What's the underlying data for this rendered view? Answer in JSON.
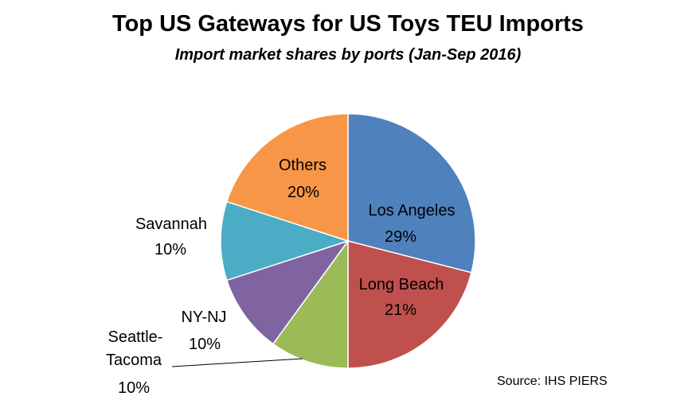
{
  "chart_data": {
    "type": "pie",
    "title": "Top US Gateways for US Toys TEU Imports",
    "subtitle": "Import market shares by ports (Jan-Sep 2016)",
    "source": "Source: IHS PIERS",
    "slices": [
      {
        "name": "Los Angeles",
        "value": 29,
        "label": "29%",
        "color": "#4f81bd"
      },
      {
        "name": "Long Beach",
        "value": 21,
        "label": "21%",
        "color": "#c0504d"
      },
      {
        "name": "Seattle-Tacoma",
        "value": 10,
        "label": "10%",
        "color": "#9bbb59"
      },
      {
        "name": "NY-NJ",
        "value": 10,
        "label": "10%",
        "color": "#8064a2"
      },
      {
        "name": "Savannah",
        "value": 10,
        "label": "10%",
        "color": "#4bacc6"
      },
      {
        "name": "Others",
        "value": 20,
        "label": "20%",
        "color": "#f79646"
      }
    ]
  }
}
